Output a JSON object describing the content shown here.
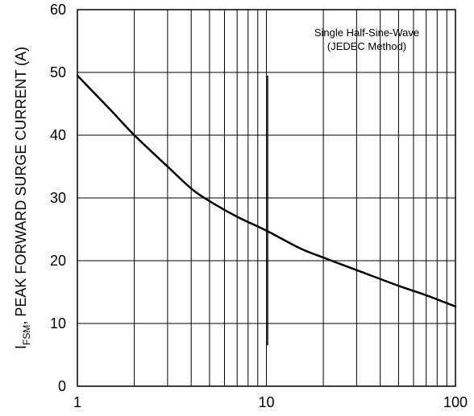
{
  "chart_data": {
    "type": "line",
    "x_scale": "log",
    "ylim": [
      0,
      60
    ],
    "xlim": [
      1,
      100
    ],
    "x_ticks": [
      "1",
      "10",
      "100"
    ],
    "y_ticks": [
      "0",
      "10",
      "20",
      "30",
      "40",
      "50",
      "60"
    ],
    "ylabel": {
      "symbol": "I",
      "subscript": "FSM",
      "text": ", PEAK FORWARD SURGE CURRENT (A)"
    },
    "annotation": [
      "Single Half-Sine-Wave",
      "(JEDEC Method)"
    ],
    "grid": true,
    "series": [
      {
        "x": [
          1,
          1.5,
          2,
          3,
          4,
          5,
          7,
          10,
          15,
          20,
          30,
          50,
          70,
          100
        ],
        "values": [
          49.5,
          44,
          40,
          35,
          31.5,
          29.5,
          27,
          24.8,
          22,
          20.5,
          18.5,
          16,
          14.5,
          12.7
        ]
      }
    ]
  }
}
